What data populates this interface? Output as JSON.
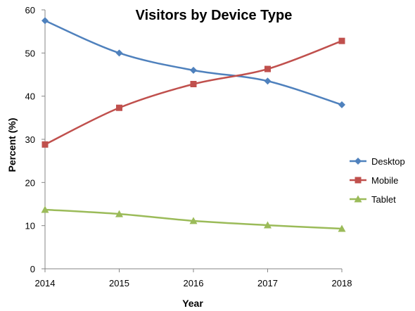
{
  "chart_data": {
    "type": "line",
    "title": "Visitors by Device Type",
    "xlabel": "Year",
    "ylabel": "Percent (%)",
    "x": [
      "2014",
      "2015",
      "2016",
      "2017",
      "2018"
    ],
    "ylim": [
      0,
      60
    ],
    "yticks": [
      "0",
      "10",
      "20",
      "30",
      "40",
      "50",
      "60"
    ],
    "grid": false,
    "legend_position": "right",
    "series": [
      {
        "name": "Desktop",
        "values": [
          57.5,
          50.0,
          46.0,
          43.5,
          38.0
        ],
        "color": "#4F81BD",
        "marker": "diamond"
      },
      {
        "name": "Mobile",
        "values": [
          28.8,
          37.3,
          42.8,
          46.3,
          52.8
        ],
        "color": "#C0504D",
        "marker": "square"
      },
      {
        "name": "Tablet",
        "values": [
          13.7,
          12.7,
          11.1,
          10.1,
          9.3
        ],
        "color": "#9BBB59",
        "marker": "triangle"
      }
    ]
  }
}
